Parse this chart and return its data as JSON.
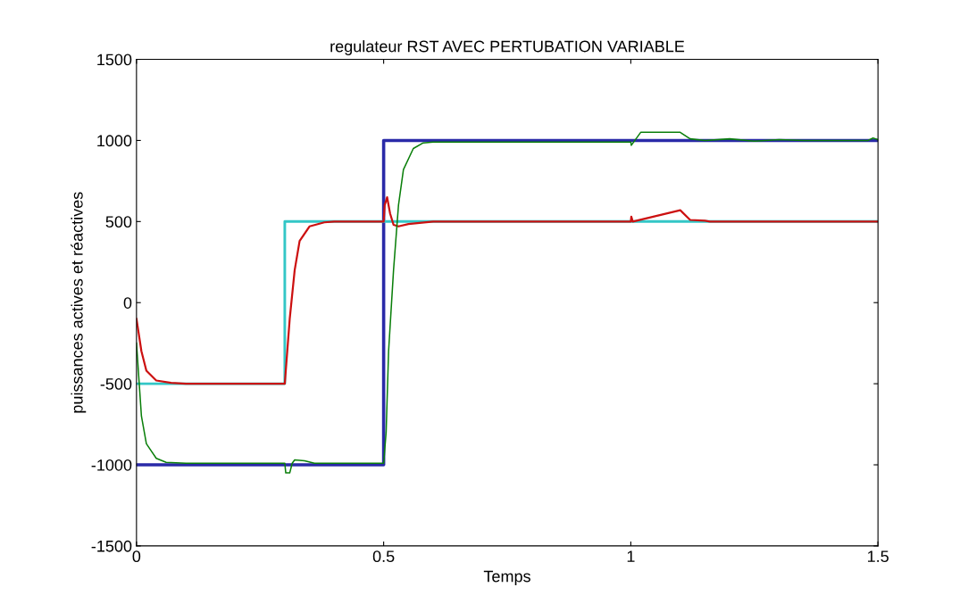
{
  "chart_data": {
    "type": "line",
    "title": "regulateur RST AVEC PERTUBATION VARIABLE",
    "xlabel": "Temps",
    "ylabel": "puissances actives et réactives",
    "xlim": [
      0,
      1.5
    ],
    "xticks": [
      0,
      0.5,
      1,
      1.5
    ],
    "ylim": [
      -1500,
      1500
    ],
    "yticks": [
      -1500,
      -1000,
      -500,
      0,
      500,
      1000,
      1500
    ],
    "grid": false,
    "legend": false,
    "series": [
      {
        "color": "#2a2aa8",
        "x": [
          0,
          0.5,
          0.5,
          1.5
        ],
        "values": [
          -1000,
          -1000,
          1000,
          1000
        ]
      },
      {
        "color": "#33c6c6",
        "x": [
          0,
          0.3,
          0.3,
          1.5
        ],
        "values": [
          -500,
          -500,
          500,
          500
        ]
      },
      {
        "color": "#cc1010",
        "x": [
          0,
          0.01,
          0.02,
          0.04,
          0.07,
          0.1,
          0.3,
          0.302,
          0.31,
          0.32,
          0.33,
          0.35,
          0.38,
          0.4,
          0.5,
          0.502,
          0.507,
          0.513,
          0.52,
          0.53,
          0.55,
          0.6,
          1.0,
          1.001,
          1.004,
          1.1,
          1.12,
          1.15,
          1.16,
          1.5
        ],
        "values": [
          -100,
          -300,
          -420,
          -480,
          -495,
          -500,
          -500,
          -420,
          -100,
          200,
          380,
          470,
          495,
          500,
          500,
          600,
          650,
          550,
          480,
          470,
          485,
          500,
          500,
          530,
          500,
          570,
          510,
          505,
          500,
          500
        ]
      },
      {
        "color": "#0a7f0a",
        "x": [
          0,
          0.01,
          0.02,
          0.04,
          0.06,
          0.1,
          0.3,
          0.302,
          0.31,
          0.315,
          0.32,
          0.34,
          0.36,
          0.5,
          0.505,
          0.51,
          0.52,
          0.53,
          0.54,
          0.56,
          0.58,
          0.6,
          1.0,
          1.001,
          1.02,
          1.1,
          1.12,
          1.15,
          1.2,
          1.25,
          1.3,
          1.35,
          1.48,
          1.49,
          1.5
        ],
        "values": [
          -250,
          -700,
          -870,
          -960,
          -985,
          -990,
          -990,
          -1050,
          -1050,
          -990,
          -970,
          -975,
          -990,
          -990,
          -800,
          -300,
          200,
          600,
          820,
          950,
          985,
          990,
          990,
          970,
          1050,
          1050,
          1010,
          1000,
          1010,
          995,
          1005,
          1000,
          1000,
          1015,
          1005
        ]
      }
    ]
  }
}
